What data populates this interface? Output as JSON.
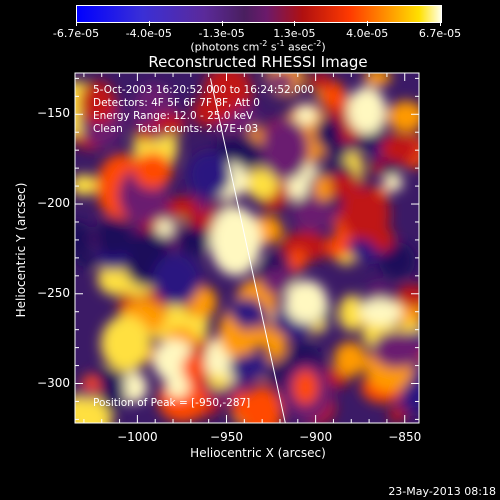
{
  "colorbar": {
    "ticks": [
      "-6.7e-05",
      "-4.0e-05",
      "-1.3e-05",
      "1.3e-05",
      "4.0e-05",
      "6.7e-05"
    ],
    "units_prefix": "(photons cm",
    "units_exp1": "-2",
    "units_mid": " s",
    "units_exp2": "-1",
    "units_mid2": " asec",
    "units_exp3": "-2",
    "units_suffix": ")"
  },
  "annotations": {
    "time_range": "5-Oct-2003 16:20:52.000 to 16:24:52.000",
    "detectors": "Detectors: 4F 5F 6F 7F 8F, Att 0",
    "energy_range": "Energy Range: 12.0 - 25.0 keV",
    "clean_counts": "Clean    Total counts: 2.07E+03",
    "peak_position": "Position of Peak = [-950,-287]"
  },
  "footer": "23-May-2013 08:18",
  "chart_data": {
    "type": "heatmap",
    "title": "Reconstructed RHESSI Image",
    "xlabel": "Heliocentric X (arcsec)",
    "ylabel": "Heliocentric Y (arcsec)",
    "xlim": [
      -1035,
      -842
    ],
    "ylim": [
      -322,
      -127
    ],
    "xticks": [
      -1000,
      -950,
      -900,
      -850
    ],
    "yticks": [
      -150,
      -200,
      -250,
      -300
    ],
    "color_range": [
      -6.7e-05,
      6.7e-05
    ],
    "limb_line": [
      [
        -959,
        -130
      ],
      [
        -917,
        -322
      ]
    ]
  }
}
